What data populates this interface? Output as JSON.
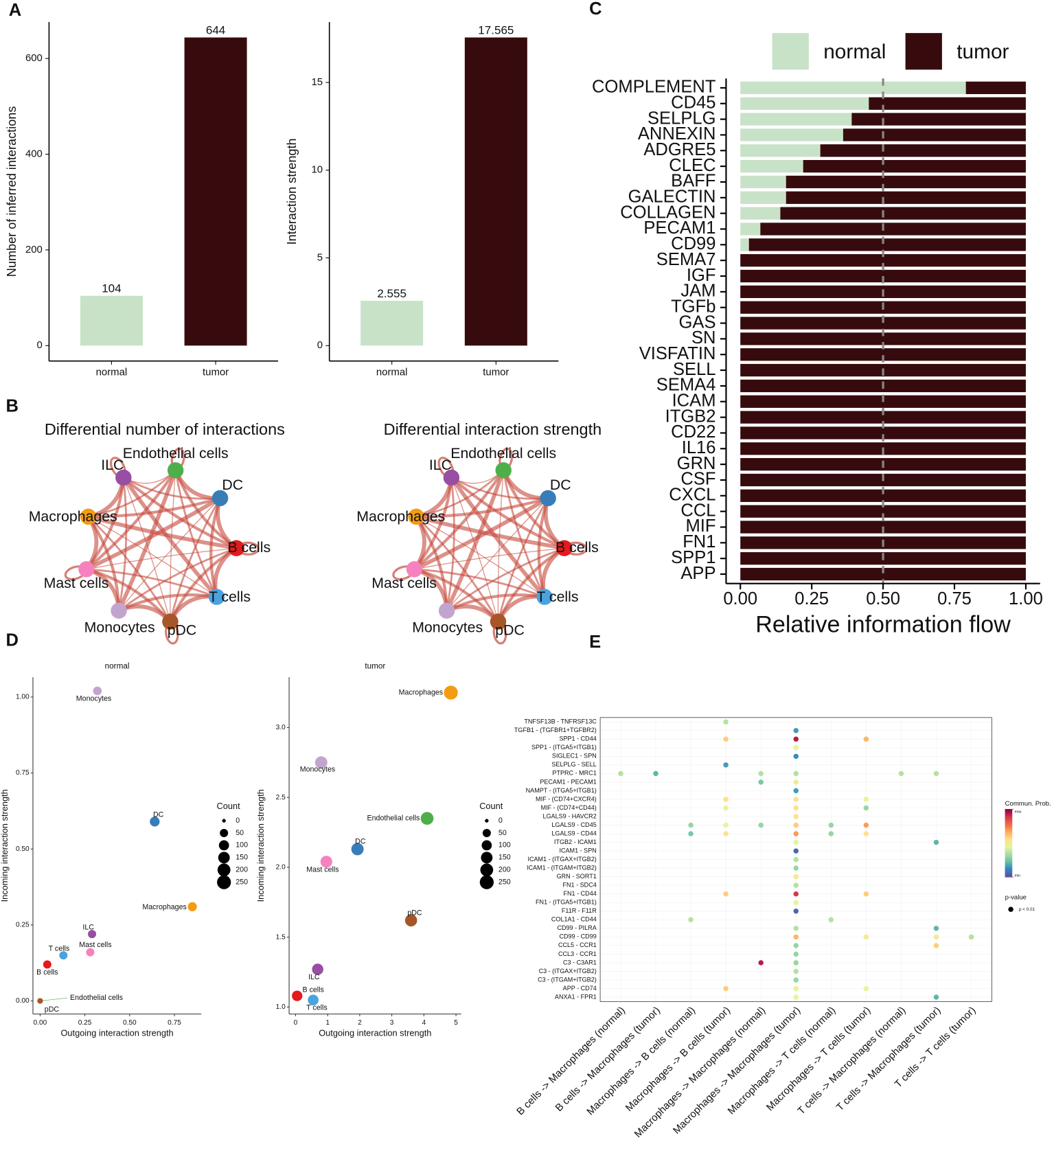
{
  "panel_labels": [
    "A",
    "B",
    "C",
    "D",
    "E"
  ],
  "chart_data": [
    {
      "type": "bar",
      "categories": [
        "normal",
        "tumor"
      ],
      "values": [
        104,
        644
      ],
      "colors": [
        "#c8e2c8",
        "#370b0d"
      ],
      "ylabel": "Number of inferred interactions",
      "ylim": [
        -32.2,
        676.2
      ],
      "yticks": [
        0,
        200,
        400,
        600
      ]
    },
    {
      "type": "bar",
      "categories": [
        "normal",
        "tumor"
      ],
      "values": [
        2.555,
        17.565
      ],
      "colors": [
        "#c8e2c8",
        "#370b0d"
      ],
      "ylabel": "Interaction strength",
      "ylim": [
        -0.878,
        18.443
      ],
      "yticks": [
        0,
        5,
        10,
        15
      ]
    },
    {
      "type": "bar",
      "orientation": "horizontal",
      "stacked": true,
      "categories": [
        "COMPLEMENT",
        "CD45",
        "SELPLG",
        "ANNEXIN",
        "ADGRE5",
        "CLEC",
        "BAFF",
        "GALECTIN",
        "COLLAGEN",
        "PECAM1",
        "CD99",
        "SEMA7",
        "IGF",
        "JAM",
        "TGFb",
        "GAS",
        "SN",
        "VISFATIN",
        "SELL",
        "SEMA4",
        "ICAM",
        "ITGB2",
        "CD22",
        "IL16",
        "GRN",
        "CSF",
        "CXCL",
        "CCL",
        "MIF",
        "FN1",
        "SPP1",
        "APP"
      ],
      "label_colors": [
        "#000000",
        "#000000",
        "#000000",
        "#4a0c0e",
        "#4a0c0e",
        "#4a0c0e",
        "#000000",
        "#4a0c0e",
        "#000000",
        "#4a0c0e",
        "#4a0c0e",
        "#4a0c0e",
        "#4a0c0e",
        "#4a0c0e",
        "#4a0c0e",
        "#4a0c0e",
        "#4a0c0e",
        "#4a0c0e",
        "#4a0c0e",
        "#4a0c0e",
        "#4a0c0e",
        "#4a0c0e",
        "#4a0c0e",
        "#4a0c0e",
        "#4a0c0e",
        "#4a0c0e",
        "#4a0c0e",
        "#4a0c0e",
        "#4a0c0e",
        "#4a0c0e",
        "#4a0c0e",
        "#4a0c0e"
      ],
      "series": [
        {
          "name": "normal",
          "color": "#c8e2c8",
          "values": [
            0.79,
            0.45,
            0.39,
            0.36,
            0.28,
            0.22,
            0.16,
            0.16,
            0.14,
            0.07,
            0.03,
            0,
            0,
            0,
            0,
            0,
            0,
            0,
            0,
            0,
            0,
            0,
            0,
            0,
            0,
            0,
            0,
            0,
            0,
            0,
            0,
            0
          ]
        },
        {
          "name": "tumor",
          "color": "#370b0d",
          "values": [
            0.21,
            0.55,
            0.61,
            0.64,
            0.72,
            0.78,
            0.84,
            0.84,
            0.86,
            0.93,
            0.97,
            1,
            1,
            1,
            1,
            1,
            1,
            1,
            1,
            1,
            1,
            1,
            1,
            1,
            1,
            1,
            1,
            1,
            1,
            1,
            1,
            1
          ]
        }
      ],
      "xlabel": "Relative information flow",
      "xlim": [
        -0.05,
        1.05
      ],
      "xticks": [
        {
          "value": 0,
          "label": "0.00"
        },
        {
          "value": 0.25,
          "label": "0.25"
        },
        {
          "value": 0.5,
          "label": "0.50"
        },
        {
          "value": 0.75,
          "label": "0.75"
        },
        {
          "value": 1,
          "label": "1.00"
        }
      ],
      "vline": 0.5,
      "legend": "top"
    },
    {
      "type": "network",
      "title": "Differential number of interactions",
      "edge_color": "#c4483a",
      "nodes": [
        {
          "name": "Endothelial cells",
          "color": "#4daf4a"
        },
        {
          "name": "DC",
          "color": "#377eb8"
        },
        {
          "name": "B cells",
          "color": "#e41a1c"
        },
        {
          "name": "T cells",
          "color": "#4aa3df"
        },
        {
          "name": "pDC",
          "color": "#a65628"
        },
        {
          "name": "Monocytes",
          "color": "#c2a5cf"
        },
        {
          "name": "Mast cells",
          "color": "#f781bf"
        },
        {
          "name": "Macrophages",
          "color": "#f39c12"
        },
        {
          "name": "ILC",
          "color": "#984ea3"
        }
      ]
    },
    {
      "type": "network",
      "title": "Differential interaction strength",
      "edge_color": "#c4483a",
      "nodes": [
        {
          "name": "Endothelial cells",
          "color": "#4daf4a"
        },
        {
          "name": "DC",
          "color": "#377eb8"
        },
        {
          "name": "B cells",
          "color": "#e41a1c"
        },
        {
          "name": "T cells",
          "color": "#4aa3df"
        },
        {
          "name": "pDC",
          "color": "#a65628"
        },
        {
          "name": "Monocytes",
          "color": "#c2a5cf"
        },
        {
          "name": "Mast cells",
          "color": "#f781bf"
        },
        {
          "name": "Macrophages",
          "color": "#f39c12"
        },
        {
          "name": "ILC",
          "color": "#984ea3"
        }
      ]
    },
    {
      "type": "scatter",
      "title": "normal",
      "xlabel": "Outgoing interaction strength",
      "ylabel": "Incoming interaction strength",
      "xlim": [
        -0.04,
        0.9
      ],
      "ylim": [
        -0.043,
        1.065
      ],
      "xticks": [
        {
          "value": 0,
          "label": "0.00"
        },
        {
          "value": 0.25,
          "label": "0.25"
        },
        {
          "value": 0.5,
          "label": "0.50"
        },
        {
          "value": 0.75,
          "label": "0.75"
        }
      ],
      "yticks": [
        {
          "value": 0,
          "label": "0.00"
        },
        {
          "value": 0.25,
          "label": "0.25"
        },
        {
          "value": 0.5,
          "label": "0.50"
        },
        {
          "value": 0.75,
          "label": "0.75"
        },
        {
          "value": 1,
          "label": "1.00"
        }
      ],
      "size_title": "Count",
      "size_ticks": [
        0,
        50,
        100,
        150,
        200,
        250
      ],
      "points": [
        {
          "name": "Monocytes",
          "color": "#c2a5cf",
          "x": 0.32,
          "y": 1.02,
          "size": 60
        },
        {
          "name": "DC",
          "color": "#377eb8",
          "x": 0.64,
          "y": 0.59,
          "size": 90
        },
        {
          "name": "Macrophages",
          "color": "#f39c12",
          "x": 0.85,
          "y": 0.31,
          "size": 70
        },
        {
          "name": "ILC",
          "color": "#984ea3",
          "x": 0.29,
          "y": 0.22,
          "size": 50
        },
        {
          "name": "Mast cells",
          "color": "#f781bf",
          "x": 0.28,
          "y": 0.16,
          "size": 50
        },
        {
          "name": "T cells",
          "color": "#4aa3df",
          "x": 0.13,
          "y": 0.15,
          "size": 50
        },
        {
          "name": "B cells",
          "color": "#e41a1c",
          "x": 0.04,
          "y": 0.12,
          "size": 50
        },
        {
          "name": "Endothelial cells",
          "color": "#4daf4a",
          "x": 0,
          "y": 0,
          "size": 5
        },
        {
          "name": "pDC",
          "color": "#a65628",
          "x": 0,
          "y": 0,
          "size": 10
        }
      ]
    },
    {
      "type": "scatter",
      "title": "tumor",
      "xlabel": "Outgoing interaction strength",
      "ylabel": "Incoming interaction strength",
      "xlim": [
        -0.2,
        5.16
      ],
      "ylim": [
        0.95,
        3.36
      ],
      "xticks": [
        0,
        1,
        2,
        3,
        4,
        5
      ],
      "yticks": [
        {
          "value": 1,
          "label": "1.0"
        },
        {
          "value": 1.5,
          "label": "1.5"
        },
        {
          "value": 2,
          "label": "2.0"
        },
        {
          "value": 2.5,
          "label": "2.5"
        },
        {
          "value": 3,
          "label": "3.0"
        }
      ],
      "size_title": "Count",
      "size_ticks": [
        0,
        50,
        100,
        150,
        200,
        250
      ],
      "points": [
        {
          "name": "Macrophages",
          "color": "#f39c12",
          "x": 4.84,
          "y": 3.25,
          "size": 250
        },
        {
          "name": "Monocytes",
          "color": "#c2a5cf",
          "x": 0.8,
          "y": 2.75,
          "size": 180
        },
        {
          "name": "Endothelial cells",
          "color": "#4daf4a",
          "x": 4.1,
          "y": 2.35,
          "size": 200
        },
        {
          "name": "DC",
          "color": "#377eb8",
          "x": 1.93,
          "y": 2.13,
          "size": 180
        },
        {
          "name": "Mast cells",
          "color": "#f781bf",
          "x": 0.96,
          "y": 2.04,
          "size": 160
        },
        {
          "name": "pDC",
          "color": "#a65628",
          "x": 3.6,
          "y": 1.62,
          "size": 170
        },
        {
          "name": "ILC",
          "color": "#984ea3",
          "x": 0.69,
          "y": 1.27,
          "size": 140
        },
        {
          "name": "B cells",
          "color": "#e41a1c",
          "x": 0.05,
          "y": 1.08,
          "size": 110
        },
        {
          "name": "T cells",
          "color": "#4aa3df",
          "x": 0.55,
          "y": 1.05,
          "size": 120
        }
      ]
    },
    {
      "type": "dotplot",
      "rows": [
        "TNFSF13B - TNFRSF13C",
        "TGFB1 - (TGFBR1+TGFBR2)",
        "SPP1 - CD44",
        "SPP1 - (ITGA5+ITGB1)",
        "SIGLEC1 - SPN",
        "SELPLG - SELL",
        "PTPRC - MRC1",
        "PECAM1 - PECAM1",
        "NAMPT - (ITGA5+ITGB1)",
        "MIF - (CD74+CXCR4)",
        "MIF - (CD74+CD44)",
        "LGALS9 - HAVCR2",
        "LGALS9 - CD45",
        "LGALS9 - CD44",
        "ITGB2 - ICAM1",
        "ICAM1 - SPN",
        "ICAM1 - (ITGAX+ITGB2)",
        "ICAM1 - (ITGAM+ITGB2)",
        "GRN - SORT1",
        "FN1 - SDC4",
        "FN1 - CD44",
        "FN1 - (ITGA5+ITGB1)",
        "F11R - F11R",
        "COL1A1 - CD44",
        "CD99 - PILRA",
        "CD99 - CD99",
        "CCL5 - CCR1",
        "CCL3 - CCR1",
        "C3 - C3AR1",
        "C3 - (ITGAX+ITGB2)",
        "C3 - (ITGAM+ITGB2)",
        "APP - CD74",
        "ANXA1 - FPR1"
      ],
      "columns": [
        "B cells -> Macrophages (normal)",
        "B cells -> Macrophages (tumor)",
        "Macrophages -> B cells (normal)",
        "Macrophages -> B cells (tumor)",
        "Macrophages -> Macrophages (normal)",
        "Macrophages -> Macrophages (tumor)",
        "Macrophages -> T cells (normal)",
        "Macrophages -> T cells (tumor)",
        "T cells -> Macrophages (normal)",
        "T cells -> Macrophages (tumor)",
        "T cells -> T cells (tumor)"
      ],
      "column_colors": [
        "#e8776f",
        "#2bb5c0",
        "#e8776f",
        "#2bb5c0",
        "#e8776f",
        "#2bb5c0",
        "#e8776f",
        "#2bb5c0",
        "#e8776f",
        "#2bb5c0",
        "#2bb5c0"
      ],
      "color_title": "Commun. Prob.",
      "clim": [
        0,
        1
      ],
      "cticks": [
        {
          "value": 1,
          "label": "max"
        },
        {
          "value": 0,
          "label": "min"
        }
      ],
      "size_title": "p-value",
      "size_labels": [
        "p < 0.01"
      ],
      "cells": [
        {
          "row": 0,
          "col": 3,
          "value": 0.35
        },
        {
          "row": 1,
          "col": 5,
          "value": 0.15
        },
        {
          "row": 2,
          "col": 3,
          "value": 0.6
        },
        {
          "row": 2,
          "col": 5,
          "value": 0.95
        },
        {
          "row": 2,
          "col": 7,
          "value": 0.65
        },
        {
          "row": 3,
          "col": 5,
          "value": 0.45
        },
        {
          "row": 4,
          "col": 5,
          "value": 0.12
        },
        {
          "row": 5,
          "col": 3,
          "value": 0.15
        },
        {
          "row": 6,
          "col": 0,
          "value": 0.35
        },
        {
          "row": 6,
          "col": 1,
          "value": 0.2
        },
        {
          "row": 6,
          "col": 4,
          "value": 0.35
        },
        {
          "row": 6,
          "col": 5,
          "value": 0.35
        },
        {
          "row": 6,
          "col": 8,
          "value": 0.35
        },
        {
          "row": 6,
          "col": 9,
          "value": 0.35
        },
        {
          "row": 7,
          "col": 4,
          "value": 0.25
        },
        {
          "row": 7,
          "col": 5,
          "value": 0.5
        },
        {
          "row": 8,
          "col": 5,
          "value": 0.15
        },
        {
          "row": 9,
          "col": 3,
          "value": 0.55
        },
        {
          "row": 9,
          "col": 5,
          "value": 0.55
        },
        {
          "row": 9,
          "col": 7,
          "value": 0.45
        },
        {
          "row": 10,
          "col": 3,
          "value": 0.45
        },
        {
          "row": 10,
          "col": 5,
          "value": 0.55
        },
        {
          "row": 10,
          "col": 7,
          "value": 0.3
        },
        {
          "row": 11,
          "col": 5,
          "value": 0.55
        },
        {
          "row": 12,
          "col": 2,
          "value": 0.3
        },
        {
          "row": 12,
          "col": 3,
          "value": 0.45
        },
        {
          "row": 12,
          "col": 4,
          "value": 0.3
        },
        {
          "row": 12,
          "col": 5,
          "value": 0.6
        },
        {
          "row": 12,
          "col": 6,
          "value": 0.3
        },
        {
          "row": 12,
          "col": 7,
          "value": 0.7
        },
        {
          "row": 13,
          "col": 2,
          "value": 0.25
        },
        {
          "row": 13,
          "col": 3,
          "value": 0.55
        },
        {
          "row": 13,
          "col": 5,
          "value": 0.7
        },
        {
          "row": 13,
          "col": 6,
          "value": 0.3
        },
        {
          "row": 13,
          "col": 7,
          "value": 0.55
        },
        {
          "row": 14,
          "col": 5,
          "value": 0.45
        },
        {
          "row": 14,
          "col": 9,
          "value": 0.2
        },
        {
          "row": 15,
          "col": 5,
          "value": 0.05
        },
        {
          "row": 16,
          "col": 5,
          "value": 0.35
        },
        {
          "row": 17,
          "col": 5,
          "value": 0.3
        },
        {
          "row": 18,
          "col": 5,
          "value": 0.5
        },
        {
          "row": 19,
          "col": 5,
          "value": 0.35
        },
        {
          "row": 20,
          "col": 3,
          "value": 0.6
        },
        {
          "row": 20,
          "col": 5,
          "value": 0.9
        },
        {
          "row": 20,
          "col": 7,
          "value": 0.6
        },
        {
          "row": 21,
          "col": 5,
          "value": 0.45
        },
        {
          "row": 22,
          "col": 5,
          "value": 0.05
        },
        {
          "row": 23,
          "col": 2,
          "value": 0.35
        },
        {
          "row": 23,
          "col": 6,
          "value": 0.35
        },
        {
          "row": 24,
          "col": 5,
          "value": 0.35
        },
        {
          "row": 24,
          "col": 9,
          "value": 0.2
        },
        {
          "row": 25,
          "col": 5,
          "value": 0.65
        },
        {
          "row": 25,
          "col": 7,
          "value": 0.5
        },
        {
          "row": 25,
          "col": 9,
          "value": 0.5
        },
        {
          "row": 25,
          "col": 10,
          "value": 0.35
        },
        {
          "row": 26,
          "col": 5,
          "value": 0.3
        },
        {
          "row": 26,
          "col": 9,
          "value": 0.6
        },
        {
          "row": 27,
          "col": 5,
          "value": 0.3
        },
        {
          "row": 28,
          "col": 4,
          "value": 0.95
        },
        {
          "row": 28,
          "col": 5,
          "value": 0.3
        },
        {
          "row": 29,
          "col": 5,
          "value": 0.35
        },
        {
          "row": 30,
          "col": 5,
          "value": 0.3
        },
        {
          "row": 31,
          "col": 3,
          "value": 0.6
        },
        {
          "row": 31,
          "col": 5,
          "value": 0.45
        },
        {
          "row": 31,
          "col": 7,
          "value": 0.45
        },
        {
          "row": 32,
          "col": 5,
          "value": 0.45
        },
        {
          "row": 32,
          "col": 9,
          "value": 0.2
        }
      ]
    }
  ]
}
